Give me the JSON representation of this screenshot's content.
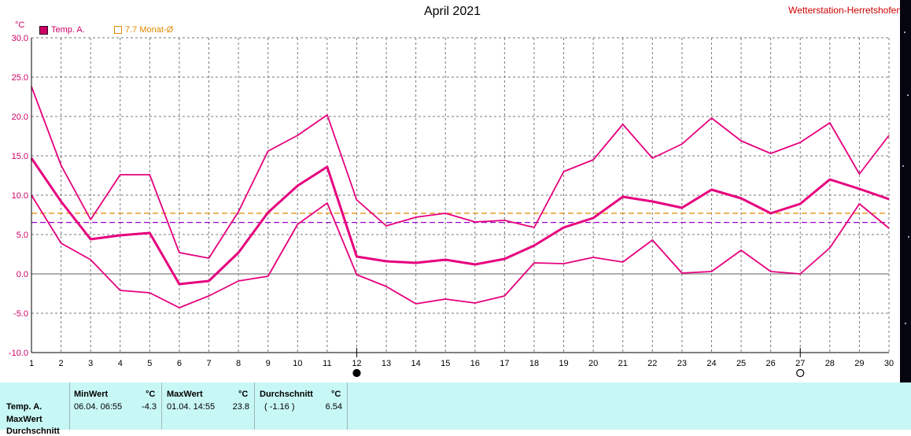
{
  "title": "April 2021",
  "station": "Wetterstation-Herretshofen",
  "y_unit": "°C",
  "legend": {
    "series_label": "Temp. A.",
    "avg_label": "7.7 Monat-Ø"
  },
  "colors": {
    "series": "#e6007e",
    "avg_line": "#e08a00",
    "mean_line": "#9900cc",
    "grid": "#7a7a7a",
    "panel_bg": "#c8f8f6"
  },
  "moon_phases": [
    {
      "day": 12,
      "phase": "new-moon"
    },
    {
      "day": 27,
      "phase": "full-moon"
    }
  ],
  "chart_data": {
    "type": "line",
    "x": [
      1,
      2,
      3,
      4,
      5,
      6,
      7,
      8,
      9,
      10,
      11,
      12,
      13,
      14,
      15,
      16,
      17,
      18,
      19,
      20,
      21,
      22,
      23,
      24,
      25,
      26,
      27,
      28,
      29,
      30
    ],
    "xlim": [
      1,
      30
    ],
    "ylim": [
      -10,
      30
    ],
    "y_ticks": [
      30.0,
      25.0,
      20.0,
      15.0,
      10.0,
      5.0,
      0.0,
      -5.0,
      -10.0
    ],
    "y_tick_labels": [
      "30.0",
      "25.0",
      "20.0",
      "15.0",
      "10.0",
      "5.0",
      "0.0",
      "-5.0",
      "-10.0"
    ],
    "grid": true,
    "series": [
      {
        "name": "Temp. A.",
        "role": "max",
        "values": [
          23.8,
          13.8,
          6.9,
          12.6,
          12.6,
          2.7,
          2.0,
          7.9,
          15.6,
          17.6,
          20.2,
          9.4,
          6.1,
          7.2,
          7.7,
          6.6,
          6.8,
          5.9,
          13.0,
          14.5,
          19.0,
          14.7,
          16.5,
          19.8,
          16.9,
          15.3,
          16.7,
          19.2,
          12.7,
          17.6
        ]
      },
      {
        "name": "",
        "role": "mean",
        "values": [
          14.7,
          9.2,
          4.4,
          4.9,
          5.2,
          -1.3,
          -0.9,
          2.7,
          7.8,
          11.2,
          13.6,
          2.2,
          1.6,
          1.4,
          1.8,
          1.2,
          1.9,
          3.6,
          5.9,
          7.1,
          9.8,
          9.2,
          8.4,
          10.7,
          9.6,
          7.7,
          8.9,
          12.0,
          10.8,
          9.5
        ]
      },
      {
        "name": "",
        "role": "min",
        "values": [
          10.0,
          3.9,
          1.8,
          -2.1,
          -2.4,
          -4.3,
          -2.8,
          -0.9,
          -0.3,
          6.3,
          9.0,
          -0.1,
          -1.6,
          -3.8,
          -3.2,
          -3.7,
          -2.8,
          1.4,
          1.3,
          2.1,
          1.5,
          4.3,
          0.1,
          0.3,
          3.0,
          0.3,
          0.0,
          3.3,
          8.9,
          5.8
        ]
      }
    ],
    "reference_lines": [
      {
        "label": "7.7 Monat-Ø",
        "value": 7.7
      },
      {
        "label": "",
        "value": 6.54
      }
    ]
  },
  "summary": {
    "row_label": "Temp. A.",
    "row_label_2": "MaxWert",
    "row_label_3": "Durchschnitt",
    "min_header": "MinWert",
    "max_header": "MaxWert",
    "avg_header": "Durchschnitt",
    "unit": "°C",
    "min_when": "06.04.  06:55",
    "min_value": "-4.3",
    "max_when": "01.04.  14:55",
    "max_value": "23.8",
    "avg_note": "( -1.16 )",
    "avg_value": "6.54"
  }
}
